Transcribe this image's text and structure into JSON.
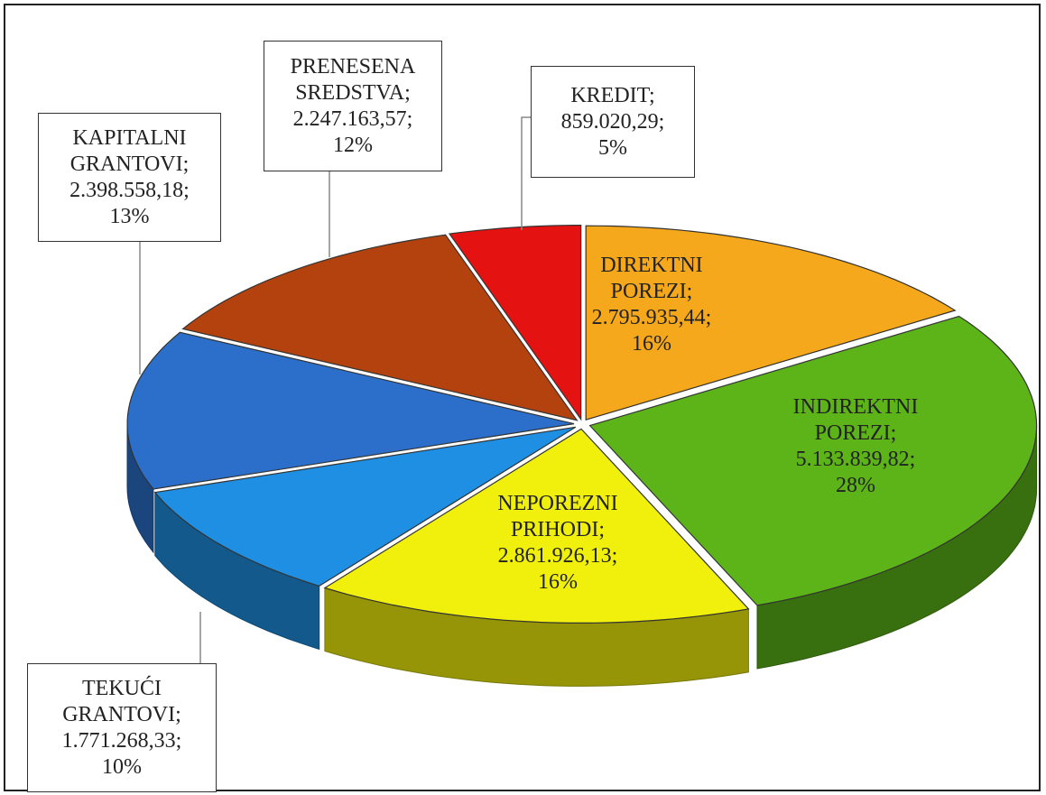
{
  "chart_data": {
    "type": "pie",
    "categories": [
      "DIREKTNI POREZI",
      "INDIREKTNI POREZI",
      "NEPOREZNI PRIHODI",
      "TEKUĆI GRANTOVI",
      "KAPITALNI GRANTOVI",
      "PRENESENA SREDSTVA",
      "KREDIT"
    ],
    "values": [
      2795935.44,
      5133839.82,
      2861926.13,
      1771268.33,
      2398558.18,
      2247163.57,
      859020.29
    ],
    "value_labels": [
      "2.795.935,44",
      "5.133.839,82",
      "2.861.926,13",
      "1.771.268,33",
      "2.398.558,18",
      "2.247.163,57",
      "859.020,29"
    ],
    "percentages": [
      16,
      28,
      16,
      10,
      13,
      12,
      5
    ],
    "percentage_labels": [
      "16%",
      "28%",
      "16%",
      "10%",
      "13%",
      "12%",
      "5%"
    ],
    "separator": ";",
    "colors": [
      "#f5a81c",
      "#5cb418",
      "#f0f00c",
      "#1e8fe2",
      "#2b6fca",
      "#b3420f",
      "#e51212"
    ]
  }
}
